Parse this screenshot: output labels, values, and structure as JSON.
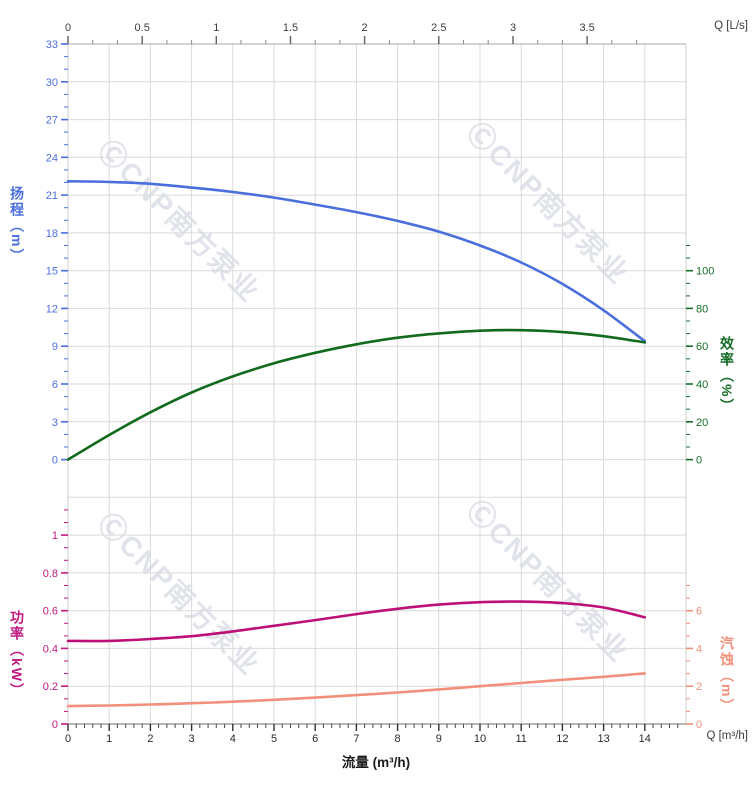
{
  "watermark": {
    "text": "ⒸCNP南方泵业"
  },
  "labels": {
    "top_unit": "Q [L/s]",
    "bottom_unit": "Q [m³/h]",
    "xlabel": "流量 (m³/h)"
  },
  "axis_titles": {
    "head": "扬程（m）",
    "eff": "效率（%）",
    "power": "功率（kW）",
    "npsh": "汽蚀（m）"
  },
  "colors": {
    "head": "#4a6fdd",
    "eff": "#146c26",
    "power": "#c01980",
    "npsh": "#f0907a",
    "grid": "#dadada",
    "top_axis_text": "#3c3c3c",
    "bottom_axis_text": "#2b2b2b"
  },
  "chart_data": {
    "type": "line",
    "title": "",
    "x_axis": {
      "bottom": {
        "label": "流量 (m³/h)",
        "unit": "Q [m³/h]",
        "range": [
          0,
          15
        ],
        "tick_values": [
          0,
          1,
          2,
          3,
          4,
          5,
          6,
          7,
          8,
          9,
          10,
          11,
          12,
          13,
          14
        ],
        "tick_labels": [
          "0",
          "1",
          "2",
          "3",
          "4",
          "5",
          "6",
          "7",
          "8",
          "9",
          "10",
          "11",
          "12",
          "13",
          "14"
        ]
      },
      "top": {
        "unit": "Q [L/s]",
        "m3h_per_lps": 3.6,
        "tick_values": [
          0,
          0.5,
          1,
          1.5,
          2,
          2.5,
          3,
          3.5
        ],
        "tick_labels": [
          "0",
          "0.5",
          "1",
          "1.5",
          "2",
          "2.5",
          "3",
          "3.5"
        ]
      }
    },
    "y_axes": {
      "head": {
        "title": "扬程（m）",
        "color": "#4a6fdd",
        "range": [
          0,
          33
        ],
        "tick_values": [
          33,
          30,
          27,
          24,
          21,
          18,
          15,
          12,
          9,
          6,
          3,
          0
        ],
        "tick_labels": [
          "33",
          "30",
          "27",
          "24",
          "21",
          "18",
          "15",
          "12",
          "9",
          "6",
          "3",
          "0"
        ]
      },
      "eff": {
        "title": "效率（%）",
        "color": "#146c26",
        "range": [
          0,
          100
        ],
        "tick_values": [
          100,
          80,
          60,
          40,
          20,
          0
        ],
        "tick_labels": [
          "100",
          "80",
          "60",
          "40",
          "20",
          "0"
        ]
      },
      "power": {
        "title": "功率（kW）",
        "color": "#c01980",
        "range": [
          0,
          1
        ],
        "tick_values": [
          1,
          0.8,
          0.6,
          0.4,
          0.2,
          0
        ],
        "tick_labels": [
          "1",
          "0.8",
          "0.6",
          "0.4",
          "0.2",
          "0"
        ]
      },
      "npsh": {
        "title": "汽蚀（m）",
        "color": "#f0907a",
        "range": [
          0,
          6
        ],
        "tick_values": [
          6,
          4,
          2,
          0
        ],
        "tick_labels": [
          "6",
          "4",
          "2",
          "0"
        ]
      }
    },
    "x": [
      0,
      1,
      2,
      3,
      4,
      5,
      6,
      7,
      8,
      9,
      10,
      11,
      12,
      13,
      14
    ],
    "series": [
      {
        "name": "扬程",
        "y_axis": "head",
        "color": "#4a6fdd",
        "values": [
          22.1,
          22.05,
          21.9,
          21.6,
          21.25,
          20.8,
          20.25,
          19.65,
          18.95,
          18.1,
          17.0,
          15.65,
          13.95,
          11.85,
          9.4
        ]
      },
      {
        "name": "效率",
        "y_axis": "eff",
        "color": "#126b1d",
        "values": [
          0,
          13,
          25,
          35.5,
          44,
          51,
          56.5,
          61,
          64.5,
          66.8,
          68.2,
          68.5,
          67.5,
          65.3,
          62
        ]
      },
      {
        "name": "功率",
        "y_axis": "power",
        "color": "#bd1077",
        "values": [
          0.44,
          0.44,
          0.45,
          0.465,
          0.49,
          0.52,
          0.55,
          0.582,
          0.61,
          0.632,
          0.645,
          0.648,
          0.64,
          0.617,
          0.565
        ]
      },
      {
        "name": "汽蚀",
        "y_axis": "npsh",
        "color": "#f2907c",
        "values": [
          0.95,
          0.98,
          1.03,
          1.1,
          1.18,
          1.28,
          1.4,
          1.53,
          1.67,
          1.83,
          2.0,
          2.17,
          2.34,
          2.5,
          2.68
        ]
      }
    ]
  }
}
